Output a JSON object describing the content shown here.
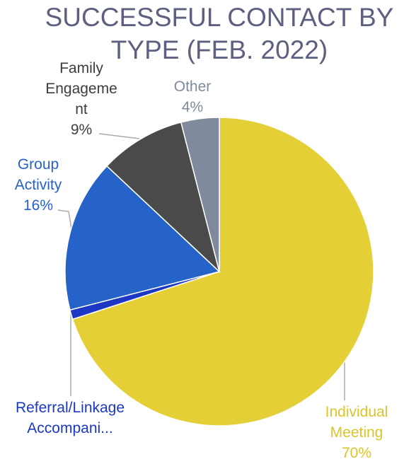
{
  "chart_data": {
    "type": "pie",
    "title": "SUCCESSFUL CONTACT BY TYPE (FEB. 2022)",
    "categories": [
      "Individual Meeting",
      "Referral/Linkage Accompani...",
      "Group Activity",
      "Family Engagement",
      "Other"
    ],
    "values": [
      70,
      1,
      16,
      9,
      4
    ],
    "value_labels": [
      "70%",
      null,
      "16%",
      "9%",
      "4%"
    ],
    "colors": [
      "#e5cf36",
      "#1b37c4",
      "#2563c9",
      "#4a4a4a",
      "#7f8a9c"
    ]
  }
}
